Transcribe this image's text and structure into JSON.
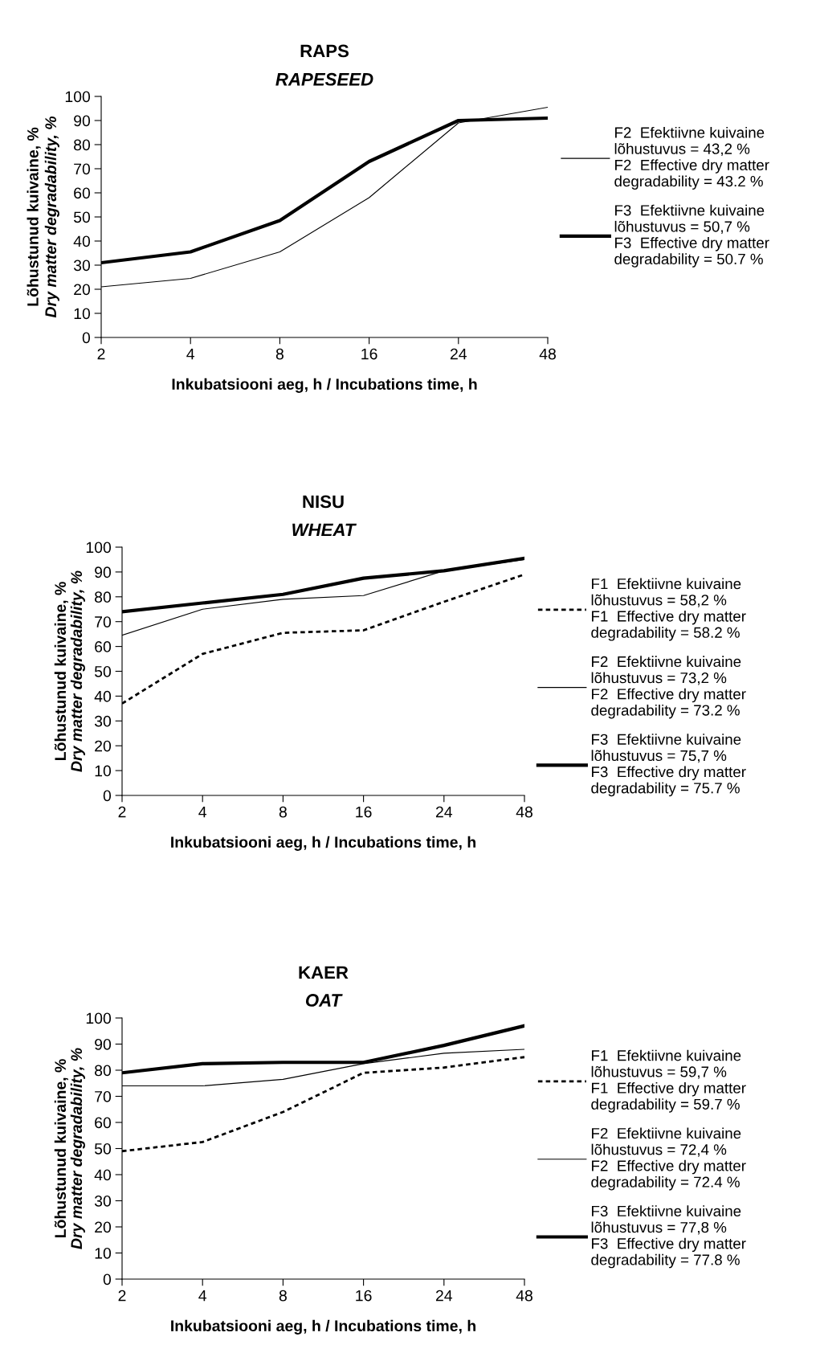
{
  "chart_data": [
    {
      "type": "line",
      "title": "RAPS",
      "subtitle": "RAPESEED",
      "xlabel": "Inkubatsiooni aeg, h / Incubations time, h",
      "ylabel": "Lõhustunud kuivaine, %\nDry matter degradability, %",
      "categories": [
        "2",
        "4",
        "8",
        "16",
        "24",
        "48"
      ],
      "ylim": [
        0,
        100
      ],
      "yticks": [
        0,
        10,
        20,
        30,
        40,
        50,
        60,
        70,
        80,
        90,
        100
      ],
      "grid": false,
      "legend": "right",
      "marker": "none",
      "series": [
        {
          "name": "F2  Efektiivne kuivaine\nlõhustuvus = 43,2 %\nF2  Effective dry matter\ndegradability = 43.2 %",
          "color": "#000000",
          "line_style": "solid",
          "values": [
            21,
            24.5,
            35.5,
            58,
            89,
            95.5
          ]
        },
        {
          "name": "F3  Efektiivne kuivaine\nlõhustuvus = 50,7 %\nF3  Effective dry matter\ndegradability = 50.7 %",
          "color": "#000000",
          "line_style": "solid",
          "values": [
            31,
            35.5,
            48.5,
            73,
            90,
            91
          ]
        }
      ]
    },
    {
      "type": "line",
      "title": "NISU",
      "subtitle": "WHEAT",
      "xlabel": "Inkubatsiooni aeg, h / Incubations time, h",
      "ylabel": "Lõhustunud kuivaine, %\nDry matter degradability, %",
      "categories": [
        "2",
        "4",
        "8",
        "16",
        "24",
        "48"
      ],
      "ylim": [
        0,
        100
      ],
      "yticks": [
        0,
        10,
        20,
        30,
        40,
        50,
        60,
        70,
        80,
        90,
        100
      ],
      "grid": false,
      "legend": "right",
      "marker": "none",
      "series": [
        {
          "name": "F1  Efektiivne kuivaine\nlõhustuvus = 58,2 %\nF1  Effective dry matter\ndegradability = 58.2 %",
          "color": "#000000",
          "line_style": "dashed",
          "values": [
            37,
            57,
            65.5,
            66.5,
            78,
            89
          ]
        },
        {
          "name": "F2  Efektiivne kuivaine\nlõhustuvus = 73,2 %\nF2  Effective dry matter\ndegradability = 73.2 %",
          "color": "#000000",
          "line_style": "solid",
          "values": [
            64.5,
            75,
            79,
            80.5,
            90.5,
            95
          ]
        },
        {
          "name": "F3  Efektiivne kuivaine\nlõhustuvus = 75,7 %\nF3  Effective dry matter\ndegradability = 75.7 %",
          "color": "#000000",
          "line_style": "solid",
          "values": [
            74,
            77.5,
            81,
            87.5,
            90.5,
            95.5
          ]
        }
      ]
    },
    {
      "type": "line",
      "title": "KAER",
      "subtitle": "OAT",
      "xlabel": "Inkubatsiooni aeg, h / Incubations time, h",
      "ylabel": "Lõhustunud kuivaine, %\nDry matter degradability, %",
      "categories": [
        "2",
        "4",
        "8",
        "16",
        "24",
        "48"
      ],
      "ylim": [
        0,
        100
      ],
      "yticks": [
        0,
        10,
        20,
        30,
        40,
        50,
        60,
        70,
        80,
        90,
        100
      ],
      "grid": false,
      "legend": "right",
      "marker": "none",
      "series": [
        {
          "name": "F1  Efektiivne kuivaine\nlõhustuvus = 59,7 %\nF1  Effective dry matter\ndegradability = 59.7 %",
          "color": "#000000",
          "line_style": "dashed",
          "values": [
            49,
            52.5,
            64,
            79,
            81,
            85
          ]
        },
        {
          "name": "F2  Efektiivne kuivaine\nlõhustuvus = 72,4 %\nF2  Effective dry matter\ndegradability = 72.4 %",
          "color": "#000000",
          "line_style": "solid",
          "values": [
            74,
            74,
            76.5,
            82.5,
            86.5,
            88
          ]
        },
        {
          "name": "F3  Efektiivne kuivaine\nlõhustuvus = 77,8 %\nF3  Effective dry matter\ndegradability = 77.8 %",
          "color": "#000000",
          "line_style": "solid",
          "values": [
            79,
            82.5,
            83,
            83,
            89.5,
            97
          ]
        }
      ]
    }
  ]
}
